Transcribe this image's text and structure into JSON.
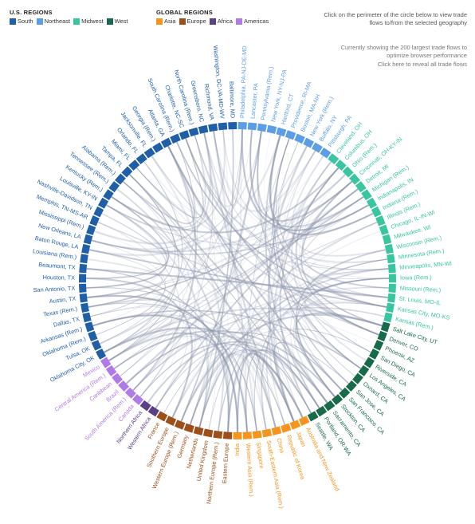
{
  "legends": {
    "us": {
      "title": "U.S. REGIONS",
      "items": [
        {
          "name": "South",
          "color": "#1f5fa8"
        },
        {
          "name": "Northeast",
          "color": "#5b9de6"
        },
        {
          "name": "Midwest",
          "color": "#37c6a0"
        },
        {
          "name": "West",
          "color": "#176a4a"
        }
      ]
    },
    "global": {
      "title": "GLOBAL REGIONS",
      "items": [
        {
          "name": "Asia",
          "color": "#f7941d"
        },
        {
          "name": "Europe",
          "color": "#9c4f19"
        },
        {
          "name": "Africa",
          "color": "#5b3f87"
        },
        {
          "name": "Americas",
          "color": "#b07be8"
        }
      ]
    }
  },
  "notes": {
    "instruction": "Click on the perimeter of the circle below to view trade flows to/from the selected geography",
    "showing": "Currently showing the 200 largest trade flows to optimize browser performance",
    "reveal": "Click here to reveal all trade flows"
  },
  "chord_colors": {
    "flow": "#8a94ab"
  },
  "geographies": [
    {
      "name": "Philadelphia, PA-NJ-DE-MD",
      "region": "Northeast"
    },
    {
      "name": "Lancaster, PA",
      "region": "Northeast"
    },
    {
      "name": "Pennsylvania (Rem.)",
      "region": "Northeast"
    },
    {
      "name": "New York, NY-NJ-PA",
      "region": "Northeast"
    },
    {
      "name": "Hartford, CT",
      "region": "Northeast"
    },
    {
      "name": "Providence, RI-MA",
      "region": "Northeast"
    },
    {
      "name": "Boston, MA-NH",
      "region": "Northeast"
    },
    {
      "name": "New York (Rem.)",
      "region": "Northeast"
    },
    {
      "name": "Buffalo, NY",
      "region": "Northeast"
    },
    {
      "name": "Pittsburgh, PA",
      "region": "Northeast"
    },
    {
      "name": "Cleveland, OH",
      "region": "Midwest"
    },
    {
      "name": "Columbus, OH",
      "region": "Midwest"
    },
    {
      "name": "Ohio (Rem.)",
      "region": "Midwest"
    },
    {
      "name": "Cincinnati, OH-KY-IN",
      "region": "Midwest"
    },
    {
      "name": "Detroit, MI",
      "region": "Midwest"
    },
    {
      "name": "Michigan (Rem.)",
      "region": "Midwest"
    },
    {
      "name": "Indianapolis, IN",
      "region": "Midwest"
    },
    {
      "name": "Indiana (Rem.)",
      "region": "Midwest"
    },
    {
      "name": "Illinois (Rem.)",
      "region": "Midwest"
    },
    {
      "name": "Chicago, IL-IN-WI",
      "region": "Midwest"
    },
    {
      "name": "Milwaukee, WI",
      "region": "Midwest"
    },
    {
      "name": "Wisconsin (Rem.)",
      "region": "Midwest"
    },
    {
      "name": "Minnesota (Rem.)",
      "region": "Midwest"
    },
    {
      "name": "Minneapolis, MN-WI",
      "region": "Midwest"
    },
    {
      "name": "Iowa (Rem.)",
      "region": "Midwest"
    },
    {
      "name": "Missouri (Rem.)",
      "region": "Midwest"
    },
    {
      "name": "St. Louis, MO-IL",
      "region": "Midwest"
    },
    {
      "name": "Kansas City, MO-KS",
      "region": "Midwest"
    },
    {
      "name": "Kansas (Rem.)",
      "region": "Midwest"
    },
    {
      "name": "Salt Lake City, UT",
      "region": "West"
    },
    {
      "name": "Denver, CO",
      "region": "West"
    },
    {
      "name": "Phoenix, AZ",
      "region": "West"
    },
    {
      "name": "San Diego, CA",
      "region": "West"
    },
    {
      "name": "Riverside, CA",
      "region": "West"
    },
    {
      "name": "Los Angeles, CA",
      "region": "West"
    },
    {
      "name": "Oxnard, CA",
      "region": "West"
    },
    {
      "name": "San Jose, CA",
      "region": "West"
    },
    {
      "name": "San Francisco, CA",
      "region": "West"
    },
    {
      "name": "Stockton, CA",
      "region": "West"
    },
    {
      "name": "Sacramento, CA",
      "region": "West"
    },
    {
      "name": "Portland, OR-WA",
      "region": "West"
    },
    {
      "name": "Seattle, WA",
      "region": "West"
    },
    {
      "name": "Australia and New Zealand",
      "region": "Asia"
    },
    {
      "name": "Japan",
      "region": "Asia"
    },
    {
      "name": "Republic of Korea",
      "region": "Asia"
    },
    {
      "name": "China",
      "region": "Asia"
    },
    {
      "name": "South-Eastern Asia (Rem.)",
      "region": "Asia"
    },
    {
      "name": "Singapore",
      "region": "Asia"
    },
    {
      "name": "Western Asia (Rem.)",
      "region": "Asia"
    },
    {
      "name": "India",
      "region": "Asia"
    },
    {
      "name": "Eastern Europe",
      "region": "Europe"
    },
    {
      "name": "Northern Europe (Rem.)",
      "region": "Europe"
    },
    {
      "name": "United Kingdom",
      "region": "Europe"
    },
    {
      "name": "Netherlands",
      "region": "Europe"
    },
    {
      "name": "Germany",
      "region": "Europe"
    },
    {
      "name": "Western Europe (Rem.)",
      "region": "Europe"
    },
    {
      "name": "Southern Europe",
      "region": "Europe"
    },
    {
      "name": "France",
      "region": "Europe"
    },
    {
      "name": "Western Africa",
      "region": "Africa"
    },
    {
      "name": "Northern Africa",
      "region": "Africa"
    },
    {
      "name": "Canada",
      "region": "Americas"
    },
    {
      "name": "South America (Rem.)",
      "region": "Americas"
    },
    {
      "name": "Brazil",
      "region": "Americas"
    },
    {
      "name": "Caribbean",
      "region": "Americas"
    },
    {
      "name": "Central America (Rem.)",
      "region": "Americas"
    },
    {
      "name": "Mexico",
      "region": "Americas"
    },
    {
      "name": "Oklahoma City, OK",
      "region": "South"
    },
    {
      "name": "Tulsa, OK",
      "region": "South"
    },
    {
      "name": "Oklahoma (Rem.)",
      "region": "South"
    },
    {
      "name": "Arkansas (Rem.)",
      "region": "South"
    },
    {
      "name": "Dallas, TX",
      "region": "South"
    },
    {
      "name": "Texas (Rem.)",
      "region": "South"
    },
    {
      "name": "Austin, TX",
      "region": "South"
    },
    {
      "name": "San Antonio, TX",
      "region": "South"
    },
    {
      "name": "Houston, TX",
      "region": "South"
    },
    {
      "name": "Beaumont, TX",
      "region": "South"
    },
    {
      "name": "Louisiana (Rem.)",
      "region": "South"
    },
    {
      "name": "Baton Rouge, LA",
      "region": "South"
    },
    {
      "name": "New Orleans, LA",
      "region": "South"
    },
    {
      "name": "Mississippi (Rem.)",
      "region": "South"
    },
    {
      "name": "Memphis, TN-MS-AR",
      "region": "South"
    },
    {
      "name": "Nashville-Davidson, TN",
      "region": "South"
    },
    {
      "name": "Louisville, KY-IN",
      "region": "South"
    },
    {
      "name": "Kentucky (Rem.)",
      "region": "South"
    },
    {
      "name": "Tennessee (Rem.)",
      "region": "South"
    },
    {
      "name": "Alabama (Rem.)",
      "region": "South"
    },
    {
      "name": "Tampa, FL",
      "region": "South"
    },
    {
      "name": "Miami, FL",
      "region": "South"
    },
    {
      "name": "Orlando, FL",
      "region": "South"
    },
    {
      "name": "Jacksonville, FL",
      "region": "South"
    },
    {
      "name": "Georgia (Rem.)",
      "region": "South"
    },
    {
      "name": "Atlanta, GA",
      "region": "South"
    },
    {
      "name": "South Carolina (Rem.)",
      "region": "South"
    },
    {
      "name": "Charlotte, NC-SC",
      "region": "South"
    },
    {
      "name": "North Carolina (Rem.)",
      "region": "South"
    },
    {
      "name": "Greensboro, NC",
      "region": "South"
    },
    {
      "name": "Richmond, VA",
      "region": "South"
    },
    {
      "name": "Washington, DC-VA-MD-WV",
      "region": "South"
    },
    {
      "name": "Baltimore, MD",
      "region": "South"
    }
  ]
}
